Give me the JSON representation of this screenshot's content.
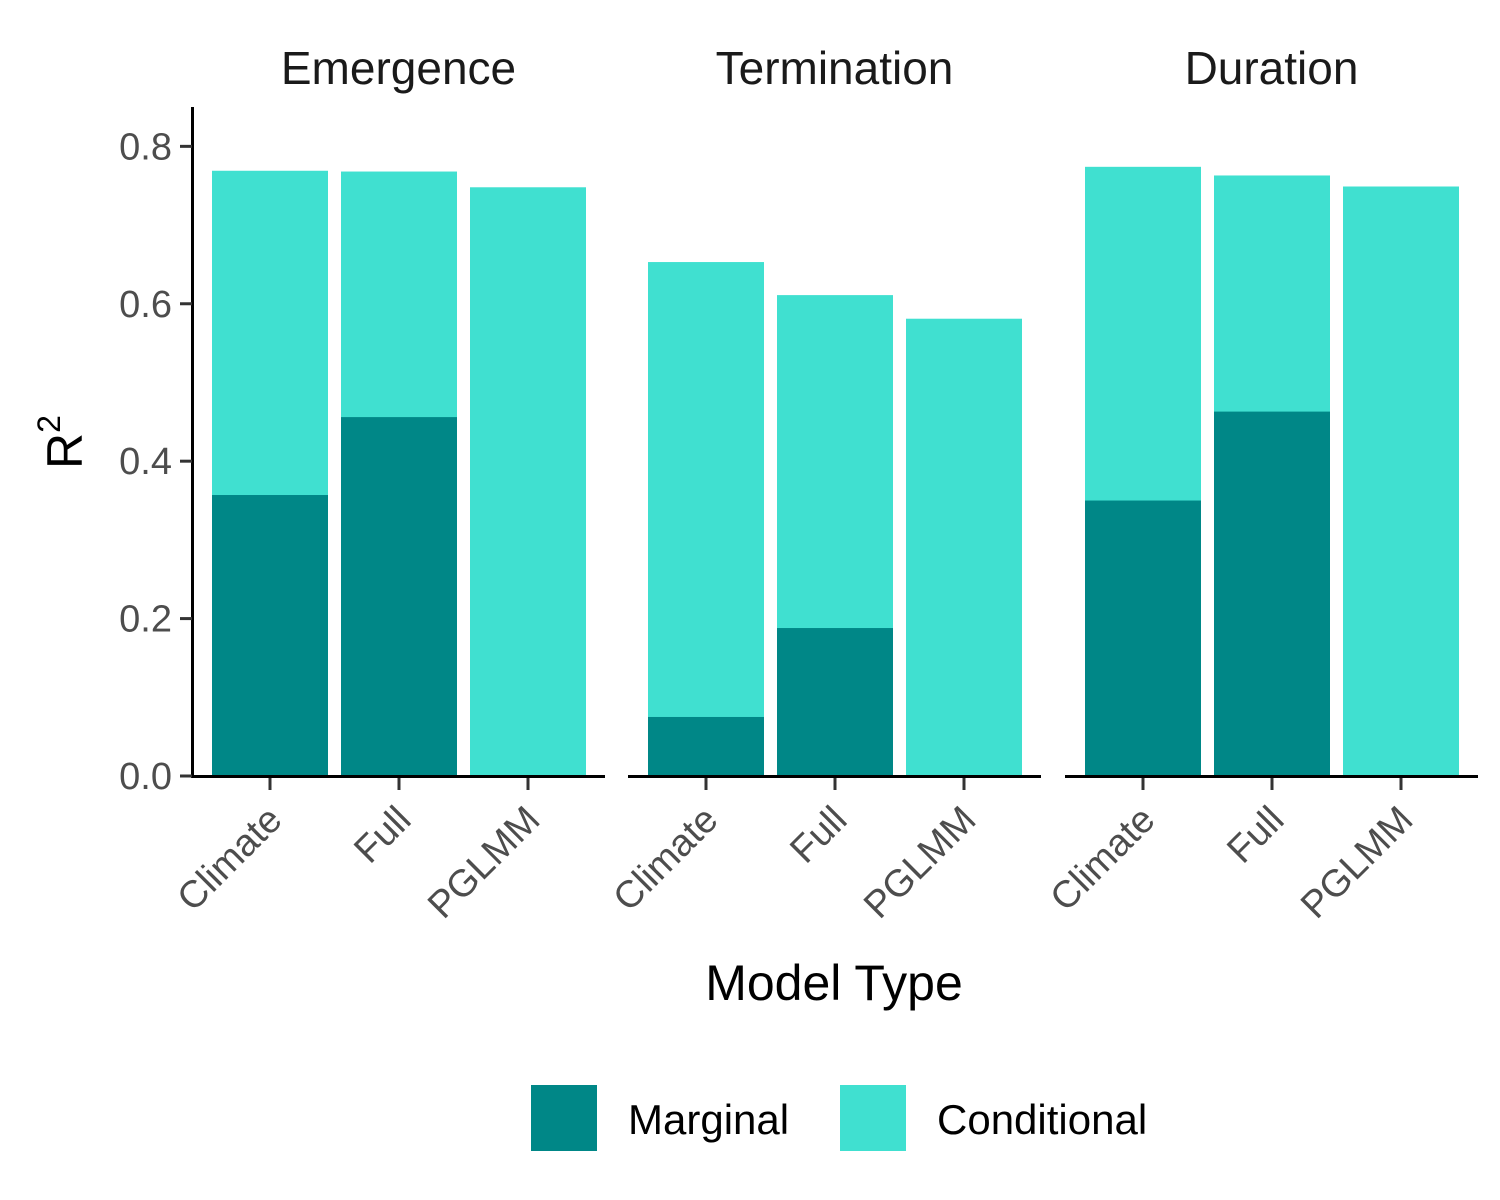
{
  "chart_data": {
    "type": "bar",
    "stacking": "overlay",
    "ylabel_base": "R",
    "ylabel_sup": "2",
    "xlabel": "Model Type",
    "ylim": [
      0,
      0.85
    ],
    "yticks": [
      "0.0",
      "0.2",
      "0.4",
      "0.6",
      "0.8"
    ],
    "ytick_values": [
      0,
      0.2,
      0.4,
      0.6,
      0.8
    ],
    "categories": [
      "Climate",
      "Full",
      "PGLMM"
    ],
    "legend": {
      "position": "bottom",
      "entries": [
        {
          "name": "Marginal",
          "color": "#008787"
        },
        {
          "name": "Conditional",
          "color": "#40E0D0"
        }
      ]
    },
    "facets": [
      {
        "title": "Emergence",
        "series": [
          {
            "name": "Conditional",
            "values": [
              0.769,
              0.768,
              0.748
            ]
          },
          {
            "name": "Marginal",
            "values": [
              0.357,
              0.456,
              null
            ]
          }
        ]
      },
      {
        "title": "Termination",
        "series": [
          {
            "name": "Conditional",
            "values": [
              0.653,
              0.611,
              0.581
            ]
          },
          {
            "name": "Marginal",
            "values": [
              0.075,
              0.188,
              null
            ]
          }
        ]
      },
      {
        "title": "Duration",
        "series": [
          {
            "name": "Conditional",
            "values": [
              0.774,
              0.763,
              0.749
            ]
          },
          {
            "name": "Marginal",
            "values": [
              0.35,
              0.463,
              null
            ]
          }
        ]
      }
    ]
  }
}
